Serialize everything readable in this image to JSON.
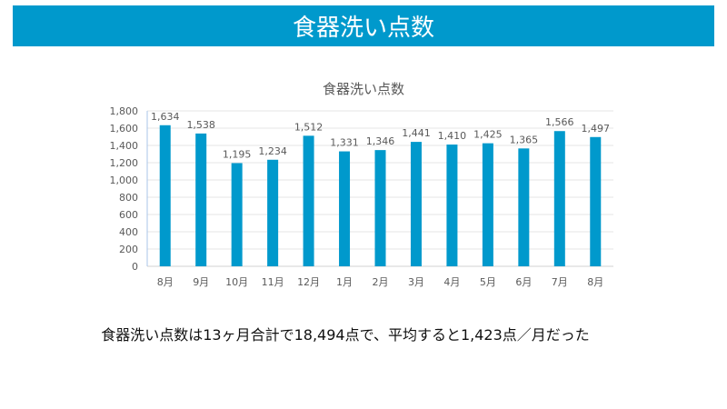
{
  "slide_title": "食器洗い点数",
  "summary": "食器洗い点数は13ヶ月合計で18,494点で、平均すると1,423点／月だった",
  "colors": {
    "accent": "#0099cc",
    "grid": "#e4e4e4",
    "text": "#595959"
  },
  "chart_data": {
    "type": "bar",
    "title": "食器洗い点数",
    "xlabel": "",
    "ylabel": "",
    "categories": [
      "8月",
      "9月",
      "10月",
      "11月",
      "12月",
      "1月",
      "2月",
      "3月",
      "4月",
      "5月",
      "6月",
      "7月",
      "8月"
    ],
    "values": [
      1634,
      1538,
      1195,
      1234,
      1512,
      1331,
      1346,
      1441,
      1410,
      1425,
      1365,
      1566,
      1497
    ],
    "data_labels": [
      "1,634",
      "1,538",
      "1,195",
      "1,234",
      "1,512",
      "1,331",
      "1,346",
      "1,441",
      "1,410",
      "1,425",
      "1,365",
      "1,566",
      "1,497"
    ],
    "ylim": [
      0,
      1800
    ],
    "yticks": [
      "0",
      "200",
      "400",
      "600",
      "800",
      "1,000",
      "1,200",
      "1,400",
      "1,600",
      "1,800"
    ],
    "grid": true,
    "legend": "none"
  }
}
